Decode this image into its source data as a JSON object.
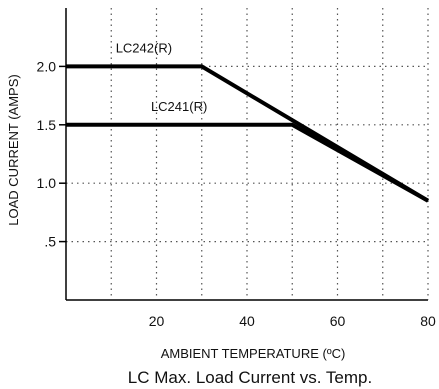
{
  "chart_data": {
    "type": "line",
    "title": "LC Max. Load Current vs. Temp.",
    "xlabel": "AMBIENT TEMPERATURE (ºC)",
    "ylabel": "LOAD CURRENT (AMPS)",
    "xlim": [
      0,
      80
    ],
    "ylim": [
      0,
      2.5
    ],
    "x_ticks": [
      20,
      40,
      60,
      80
    ],
    "x_tick_labels": [
      "20",
      "40",
      "60",
      "80"
    ],
    "y_ticks": [
      0.5,
      1.0,
      1.5,
      2.0
    ],
    "y_tick_labels": [
      ".5",
      "1.0",
      "1.5",
      "2.0"
    ],
    "grid": true,
    "series": [
      {
        "name": "LC242(R)",
        "x": [
          0,
          30,
          80
        ],
        "y": [
          2.0,
          2.0,
          0.85
        ]
      },
      {
        "name": "LC241(R)",
        "x": [
          0,
          50,
          80
        ],
        "y": [
          1.5,
          1.5,
          0.85
        ]
      }
    ],
    "colors": {
      "line": "#000000",
      "grid": "#555555",
      "text": "#111111"
    }
  }
}
